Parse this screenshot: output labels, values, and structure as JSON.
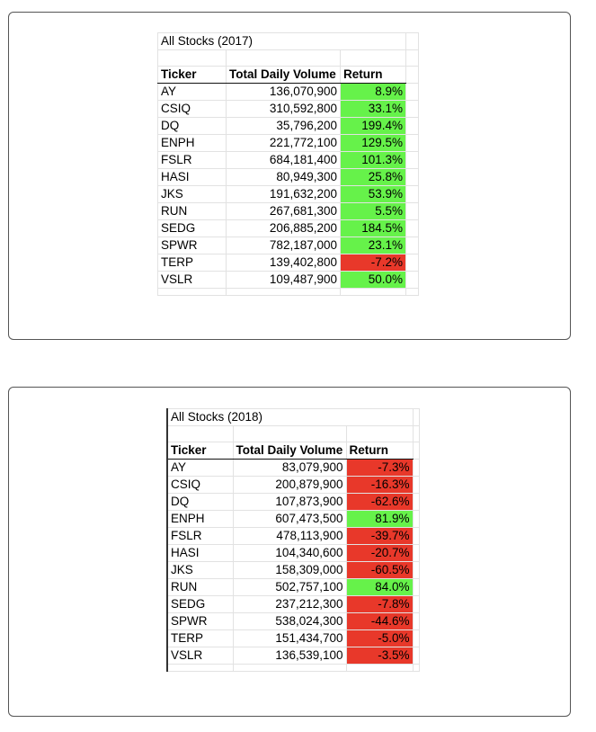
{
  "tables": [
    {
      "title": "All Stocks (2017)",
      "headers": [
        "Ticker",
        "Total Daily Volume",
        "Return"
      ],
      "rows": [
        {
          "ticker": "AY",
          "volume": "136,070,900",
          "ret": "8.9%"
        },
        {
          "ticker": "CSIQ",
          "volume": "310,592,800",
          "ret": "33.1%"
        },
        {
          "ticker": "DQ",
          "volume": "35,796,200",
          "ret": "199.4%"
        },
        {
          "ticker": "ENPH",
          "volume": "221,772,100",
          "ret": "129.5%"
        },
        {
          "ticker": "FSLR",
          "volume": "684,181,400",
          "ret": "101.3%"
        },
        {
          "ticker": "HASI",
          "volume": "80,949,300",
          "ret": "25.8%"
        },
        {
          "ticker": "JKS",
          "volume": "191,632,200",
          "ret": "53.9%"
        },
        {
          "ticker": "RUN",
          "volume": "267,681,300",
          "ret": "5.5%"
        },
        {
          "ticker": "SEDG",
          "volume": "206,885,200",
          "ret": "184.5%"
        },
        {
          "ticker": "SPWR",
          "volume": "782,187,000",
          "ret": "23.1%"
        },
        {
          "ticker": "TERP",
          "volume": "139,402,800",
          "ret": "-7.2%"
        },
        {
          "ticker": "VSLR",
          "volume": "109,487,900",
          "ret": "50.0%"
        }
      ]
    },
    {
      "title": "All Stocks (2018)",
      "headers": [
        "Ticker",
        "Total Daily Volume",
        "Return"
      ],
      "rows": [
        {
          "ticker": "AY",
          "volume": "83,079,900",
          "ret": "-7.3%"
        },
        {
          "ticker": "CSIQ",
          "volume": "200,879,900",
          "ret": "-16.3%"
        },
        {
          "ticker": "DQ",
          "volume": "107,873,900",
          "ret": "-62.6%"
        },
        {
          "ticker": "ENPH",
          "volume": "607,473,500",
          "ret": "81.9%"
        },
        {
          "ticker": "FSLR",
          "volume": "478,113,900",
          "ret": "-39.7%"
        },
        {
          "ticker": "HASI",
          "volume": "104,340,600",
          "ret": "-20.7%"
        },
        {
          "ticker": "JKS",
          "volume": "158,309,000",
          "ret": "-60.5%"
        },
        {
          "ticker": "RUN",
          "volume": "502,757,100",
          "ret": "84.0%"
        },
        {
          "ticker": "SEDG",
          "volume": "237,212,300",
          "ret": "-7.8%"
        },
        {
          "ticker": "SPWR",
          "volume": "538,024,300",
          "ret": "-44.6%"
        },
        {
          "ticker": "TERP",
          "volume": "151,434,700",
          "ret": "-5.0%"
        },
        {
          "ticker": "VSLR",
          "volume": "136,539,100",
          "ret": "-3.5%"
        }
      ]
    }
  ],
  "colors": {
    "positive": "#66f24a",
    "negative": "#e8382a"
  }
}
